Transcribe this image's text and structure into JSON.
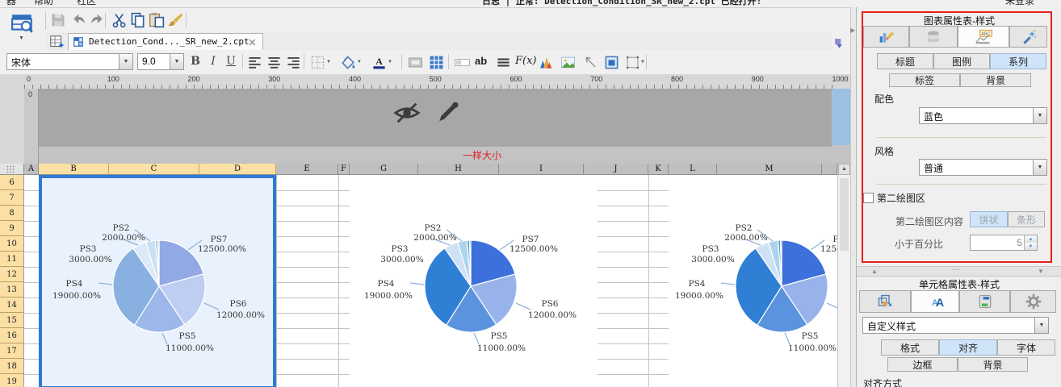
{
  "menu_bar": {
    "items": [
      "器",
      "帮助",
      "社区"
    ],
    "status_text": "日志 | 正常: Detection_Condition_SR_new_2.cpt 已经打开!",
    "login": "未登录"
  },
  "quick_toolbar": {
    "icons": [
      "save",
      "undo",
      "redo",
      "cut",
      "copy",
      "paste",
      "format-brush"
    ]
  },
  "tab_bar": {
    "doc_tab": "Detection_Cond..._SR_new_2.cpt"
  },
  "format_toolbar": {
    "font_name": "宋体",
    "font_size": "9.0",
    "bold": "B",
    "italic": "I",
    "underline": "U",
    "ab_label": "ab",
    "formula_label": "F(x)"
  },
  "ruler": {
    "ticks": [
      "0",
      "100",
      "200",
      "300",
      "400",
      "500",
      "600",
      "700",
      "800",
      "900",
      "1000"
    ],
    "v_tick": "0"
  },
  "canvas": {
    "hint": "一样大小"
  },
  "sheet": {
    "columns": [
      "A",
      "B",
      "C",
      "D",
      "E",
      "F",
      "G",
      "H",
      "I",
      "J",
      "K",
      "L",
      "M",
      ""
    ],
    "rows": [
      "6",
      "7",
      "8",
      "9",
      "10",
      "11",
      "12",
      "13",
      "14",
      "15",
      "16",
      "17",
      "18",
      "19"
    ],
    "selected_columns": [
      "B",
      "C",
      "D"
    ]
  },
  "chart_data": {
    "type": "pie",
    "instances": 3,
    "points": [
      {
        "name": "PS7",
        "label": "12500.00%",
        "value": 12500
      },
      {
        "name": "PS6",
        "label": "12000.00%",
        "value": 12000
      },
      {
        "name": "PS5",
        "label": "11000.00%",
        "value": 11000
      },
      {
        "name": "PS4",
        "label": "19000.00%",
        "value": 19000
      },
      {
        "name": "PS3",
        "label": "3000.00%",
        "value": 3000
      },
      {
        "name": "PS2",
        "label": "2000.00%",
        "value": 2000
      },
      {
        "name": "",
        "label": "",
        "value": 500
      },
      {
        "name": "",
        "label": "",
        "value": 250
      }
    ],
    "palette_selected": [
      "#93a9e6",
      "#bdcef2",
      "#9cb7e9",
      "#88b0e0",
      "#dce9f6",
      "#cbe0f2",
      "#8fc0d8",
      "#699bb0"
    ],
    "palette_normal": [
      "#3e70db",
      "#97b3e9",
      "#5c93de",
      "#2f7fd5",
      "#cfe1f4",
      "#aed3ee",
      "#4da0ca",
      "#117585"
    ],
    "legend": "none",
    "title": ""
  },
  "chart_panel": {
    "title": "图表属性表-样式",
    "tabs": [
      "标题",
      "图例",
      "系列"
    ],
    "active_tab": "系列",
    "sub_tabs": [
      "标签",
      "背景"
    ],
    "color_label": "配色",
    "color_value": "蓝色",
    "style_label": "风格",
    "style_value": "普通",
    "second_plot": "第二绘图区",
    "second_plot_content": "第二绘图区内容",
    "pie_opt": "饼状",
    "bar_opt": "条形",
    "percent_label": "小于百分比",
    "percent_value": "5",
    "collapse_dots": "···"
  },
  "cell_panel": {
    "title": "单元格属性表-样式",
    "style_value": "自定义样式",
    "tabs": [
      "格式",
      "对齐",
      "字体"
    ],
    "active_tab": "对齐",
    "sub_tabs": [
      "边框",
      "背景"
    ],
    "section": "对齐方式"
  },
  "colors": {
    "accent_red": "#e02020",
    "selection_blue": "#2e7ad2",
    "selection_fill": "#e9f2fc",
    "header_orange": "#fcdfa4",
    "active_tab_blue": "#cfe4f8"
  }
}
